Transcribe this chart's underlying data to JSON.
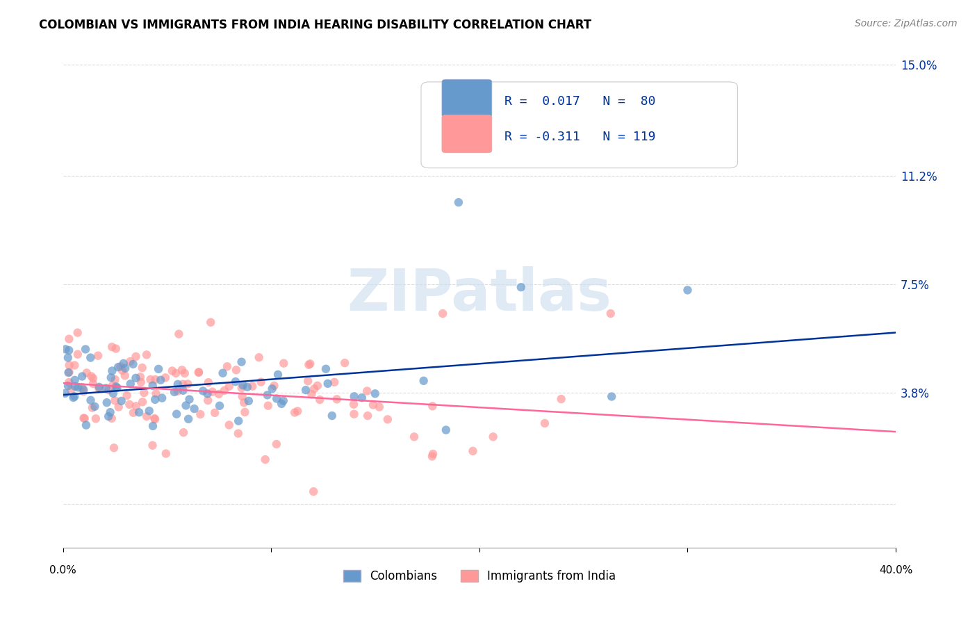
{
  "title": "COLOMBIAN VS IMMIGRANTS FROM INDIA HEARING DISABILITY CORRELATION CHART",
  "source": "Source: ZipAtlas.com",
  "ylabel": "Hearing Disability",
  "yticks": [
    0.0,
    0.038,
    0.075,
    0.112,
    0.15
  ],
  "ytick_labels": [
    "",
    "3.8%",
    "7.5%",
    "11.2%",
    "15.0%"
  ],
  "xlim": [
    0.0,
    0.4
  ],
  "ylim": [
    -0.015,
    0.158
  ],
  "legend_label1": "Colombians",
  "legend_label2": "Immigrants from India",
  "color_blue": "#6699CC",
  "color_pink": "#FF9999",
  "color_line_blue": "#003399",
  "color_line_pink": "#FF6699",
  "watermark": "ZIPatlas",
  "watermark_color": "#CCDDEE",
  "background_color": "#FFFFFF",
  "grid_color": "#DDDDDD"
}
